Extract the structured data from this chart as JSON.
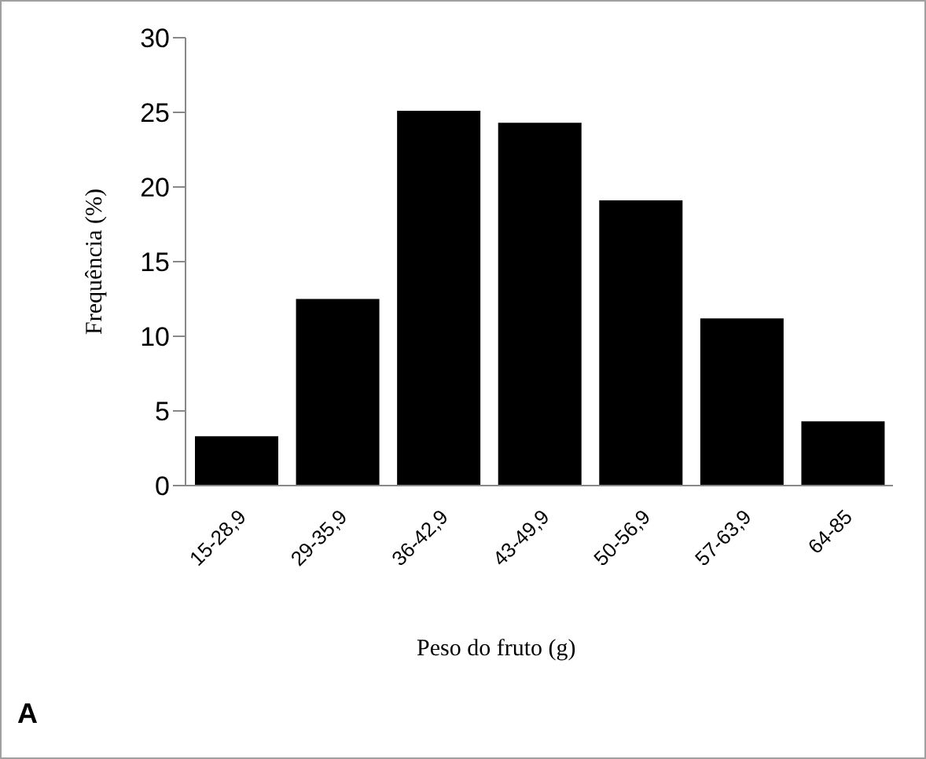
{
  "chart_data": {
    "type": "bar",
    "xlabel": "Peso do fruto (g)",
    "ylabel": "Frequência (%)",
    "categories": [
      "15-28,9",
      "29-35,9",
      "36-42,9",
      "43-49,9",
      "50-56,9",
      "57-63,9",
      "64-85"
    ],
    "values": [
      3.3,
      12.5,
      25.1,
      24.3,
      19.1,
      11.2,
      4.3
    ],
    "color": "#000000",
    "ylim": [
      0,
      30
    ],
    "yticks": [
      0,
      5,
      10,
      15,
      20,
      25,
      30
    ],
    "annotations": [
      "A"
    ]
  }
}
